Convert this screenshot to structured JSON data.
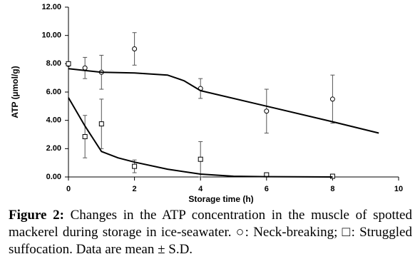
{
  "chart_data": {
    "type": "scatter",
    "y_label": "ATP (µmol/g)",
    "x_label": "Storage time (h)",
    "xlim": [
      0,
      10
    ],
    "xticks": [
      0,
      2,
      4,
      6,
      8,
      10
    ],
    "ylim": [
      0,
      12
    ],
    "yticks": [
      {
        "value": 0,
        "label": "0.00"
      },
      {
        "value": 2,
        "label": "2.00"
      },
      {
        "value": 4,
        "label": "4.00"
      },
      {
        "value": 6,
        "label": "6.00"
      },
      {
        "value": 8,
        "label": "8.00"
      },
      {
        "value": 10,
        "label": "10.00"
      },
      {
        "value": 12,
        "label": "12.00"
      }
    ],
    "series": [
      {
        "marker": "circle",
        "color": "#000000",
        "x": [
          0,
          0.5,
          1,
          2,
          4,
          6,
          8
        ],
        "values": [
          7.95,
          7.7,
          7.4,
          9.05,
          6.25,
          4.65,
          5.5
        ],
        "errors": [
          0,
          0.75,
          1.2,
          1.15,
          0.7,
          1.55,
          1.7
        ]
      },
      {
        "marker": "square",
        "color": "#000000",
        "x": [
          0,
          0.5,
          1,
          2,
          4,
          6,
          8
        ],
        "values": [
          8.0,
          2.85,
          3.75,
          0.75,
          1.25,
          0.15,
          0.05
        ],
        "errors": [
          0,
          1.5,
          1.75,
          0.45,
          1.25,
          0.05,
          0
        ]
      },
      {
        "marker": "line",
        "color": "#000000",
        "x": [
          0,
          1,
          2,
          3,
          3.5,
          4,
          6,
          8,
          9.4
        ],
        "values": [
          7.65,
          7.4,
          7.35,
          7.2,
          6.8,
          6.1,
          5.0,
          3.9,
          3.1
        ]
      },
      {
        "marker": "line",
        "color": "#000000",
        "x": [
          0,
          0.5,
          1,
          1.5,
          2,
          3,
          4,
          5,
          6,
          8
        ],
        "values": [
          5.6,
          3.6,
          1.8,
          1.35,
          1.05,
          0.55,
          0.2,
          0.05,
          0.02,
          0
        ]
      }
    ]
  },
  "caption": {
    "label": "Figure 2:",
    "text": " Changes in the ATP concentration in the muscle of spotted mackerel during storage in ice-seawater. ○: Neck-breaking; □: Struggled suffocation. Data are mean ± S.D."
  }
}
